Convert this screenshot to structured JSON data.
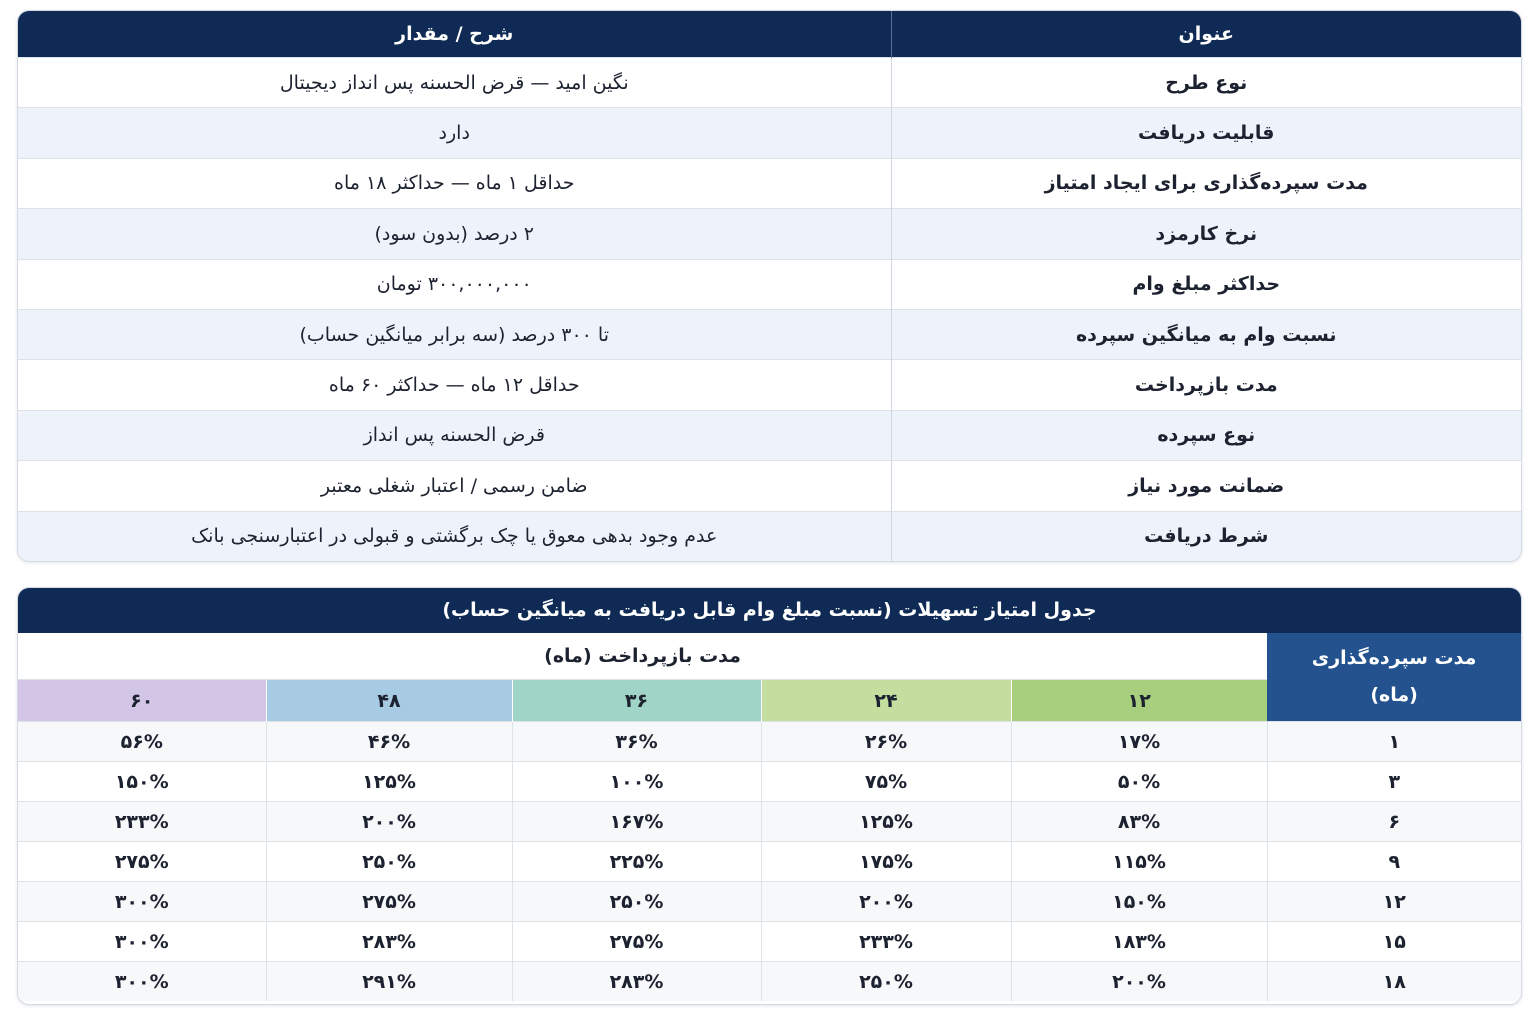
{
  "table1": {
    "headers": {
      "title": "عنوان",
      "value": "شرح / مقدار"
    },
    "rows": [
      {
        "label": "نوع طرح",
        "value": "نگین امید — قرض الحسنه پس انداز دیجیتال"
      },
      {
        "label": "قابلیت دریافت",
        "value": "دارد"
      },
      {
        "label": "مدت سپرده‌گذاری برای ایجاد امتیاز",
        "value": "حداقل ۱ ماه — حداکثر ۱۸ ماه"
      },
      {
        "label": "نرخ کارمزد",
        "value": "۲ درصد (بدون سود)"
      },
      {
        "label": "حداکثر مبلغ وام",
        "value": "۳۰۰,۰۰۰,۰۰۰ تومان"
      },
      {
        "label": "نسبت وام به میانگین سپرده",
        "value": "تا ۳۰۰ درصد (سه برابر میانگین حساب)"
      },
      {
        "label": "مدت بازپرداخت",
        "value": "حداقل ۱۲ ماه — حداکثر ۶۰ ماه"
      },
      {
        "label": "نوع سپرده",
        "value": "قرض الحسنه پس انداز"
      },
      {
        "label": "ضمانت مورد نیاز",
        "value": "ضامن رسمی / اعتبار شغلی معتبر"
      },
      {
        "label": "شرط دریافت",
        "value": "عدم وجود بدهی معوق یا چک برگشتی و قبولی در اعتبارسنجی بانک"
      }
    ]
  },
  "table2": {
    "title": "جدول امتیاز تسهیلات (نسبت مبلغ وام قابل دریافت به میانگین حساب)",
    "repayment_header": "مدت بازپرداخت (ماه)",
    "deposit_header_line1": "مدت سپرده‌گذاری",
    "deposit_header_line2": "(ماه)",
    "months": [
      {
        "label": "۱۲",
        "color": "#a8cf7e"
      },
      {
        "label": "۲۴",
        "color": "#c4dea0"
      },
      {
        "label": "۳۶",
        "color": "#9fd4c6"
      },
      {
        "label": "۴۸",
        "color": "#a8cbe4"
      },
      {
        "label": "۶۰",
        "color": "#d2c5e6"
      }
    ],
    "rows": [
      {
        "deposit": "۱",
        "values": [
          "۱۷%",
          "۲۶%",
          "۳۶%",
          "۴۶%",
          "۵۶%"
        ]
      },
      {
        "deposit": "۳",
        "values": [
          "۵۰%",
          "۷۵%",
          "۱۰۰%",
          "۱۲۵%",
          "۱۵۰%"
        ]
      },
      {
        "deposit": "۶",
        "values": [
          "۸۳%",
          "۱۲۵%",
          "۱۶۷%",
          "۲۰۰%",
          "۲۳۳%"
        ]
      },
      {
        "deposit": "۹",
        "values": [
          "۱۱۵%",
          "۱۷۵%",
          "۲۲۵%",
          "۲۵۰%",
          "۲۷۵%"
        ]
      },
      {
        "deposit": "۱۲",
        "values": [
          "۱۵۰%",
          "۲۰۰%",
          "۲۵۰%",
          "۲۷۵%",
          "۳۰۰%"
        ]
      },
      {
        "deposit": "۱۵",
        "values": [
          "۱۸۳%",
          "۲۳۳%",
          "۲۷۵%",
          "۲۸۳%",
          "۳۰۰%"
        ]
      },
      {
        "deposit": "۱۸",
        "values": [
          "۲۰۰%",
          "۲۵۰%",
          "۲۸۳%",
          "۲۹۱%",
          "۳۰۰%"
        ]
      }
    ]
  }
}
